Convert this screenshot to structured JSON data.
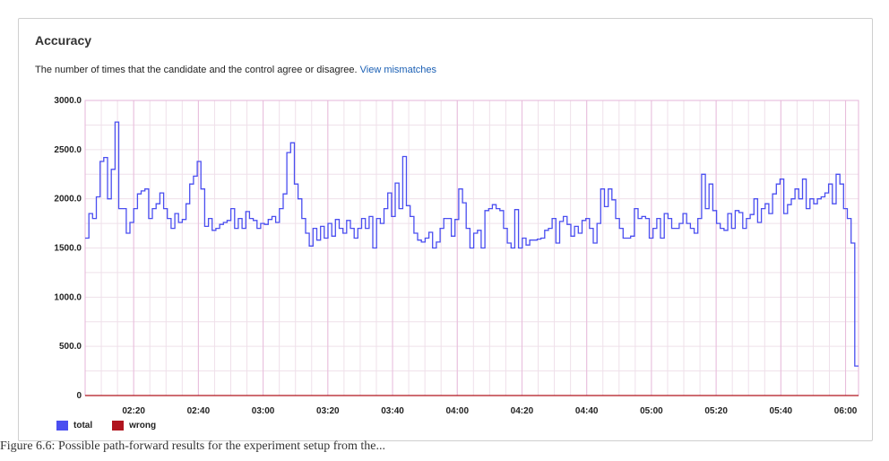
{
  "card": {
    "title": "Accuracy",
    "description": "The number of times that the candidate and the control agree or disagree.",
    "link_label": "View mismatches"
  },
  "caption": "Figure 6.6: Possible path-forward results for the experiment setup from the...",
  "colors": {
    "total": "#4a4ef0",
    "wrong": "#b0141e",
    "grid_major": "#e8bcdc",
    "grid_minor": "#efe0ea"
  },
  "chart_data": {
    "type": "line",
    "step": true,
    "title": "",
    "xlabel": "",
    "ylabel": "",
    "ylim": [
      0,
      3000
    ],
    "yticks": [
      "0",
      "500.0",
      "1000.0",
      "1500.0",
      "2000.0",
      "2500.0",
      "3000.0"
    ],
    "xticks": [
      "02:20",
      "02:40",
      "03:00",
      "03:20",
      "03:40",
      "04:00",
      "04:20",
      "04:40",
      "05:00",
      "05:20",
      "05:40",
      "06:00"
    ],
    "xrange_min": [
      125,
      364
    ],
    "legend": "bottom-left",
    "series": [
      {
        "name": "total",
        "values": [
          1600,
          1850,
          1800,
          2020,
          2380,
          2420,
          2000,
          2300,
          2780,
          1900,
          1900,
          1650,
          1760,
          1900,
          2050,
          2080,
          2100,
          1800,
          1900,
          1950,
          2060,
          1900,
          1800,
          1700,
          1850,
          1760,
          1790,
          1950,
          2150,
          2230,
          2380,
          2100,
          1720,
          1800,
          1680,
          1700,
          1740,
          1760,
          1780,
          1900,
          1700,
          1800,
          1700,
          1870,
          1800,
          1780,
          1700,
          1750,
          1740,
          1790,
          1820,
          1760,
          1900,
          2050,
          2470,
          2570,
          2150,
          2000,
          1800,
          1650,
          1520,
          1700,
          1580,
          1720,
          1600,
          1750,
          1620,
          1790,
          1700,
          1650,
          1780,
          1700,
          1600,
          1700,
          1800,
          1700,
          1820,
          1500,
          1800,
          1750,
          1900,
          2060,
          1820,
          2160,
          1900,
          2430,
          1930,
          1820,
          1650,
          1580,
          1560,
          1600,
          1660,
          1500,
          1560,
          1700,
          1800,
          1800,
          1620,
          1790,
          2100,
          1960,
          1700,
          1500,
          1650,
          1680,
          1500,
          1880,
          1900,
          1940,
          1900,
          1880,
          1700,
          1550,
          1500,
          1890,
          1500,
          1600,
          1530,
          1580,
          1580,
          1590,
          1600,
          1680,
          1700,
          1800,
          1550,
          1770,
          1820,
          1740,
          1620,
          1720,
          1650,
          1780,
          1800,
          1700,
          1550,
          1750,
          2100,
          1920,
          2100,
          1990,
          1800,
          1700,
          1600,
          1600,
          1620,
          1900,
          1800,
          1820,
          1800,
          1600,
          1700,
          1800,
          1600,
          1850,
          1800,
          1700,
          1700,
          1750,
          1850,
          1750,
          1700,
          1650,
          1800,
          2250,
          1900,
          2150,
          1880,
          1750,
          1700,
          1680,
          1850,
          1700,
          1880,
          1860,
          1700,
          1800,
          1840,
          2000,
          1760,
          1900,
          1950,
          1850,
          2050,
          2150,
          2200,
          1850,
          1940,
          2000,
          2100,
          2000,
          2200,
          1900,
          2000,
          1950,
          2000,
          2020,
          2060,
          2150,
          1950,
          2250,
          2150,
          1900,
          1800,
          1550,
          300
        ]
      },
      {
        "name": "wrong",
        "values": [
          0
        ]
      }
    ]
  }
}
